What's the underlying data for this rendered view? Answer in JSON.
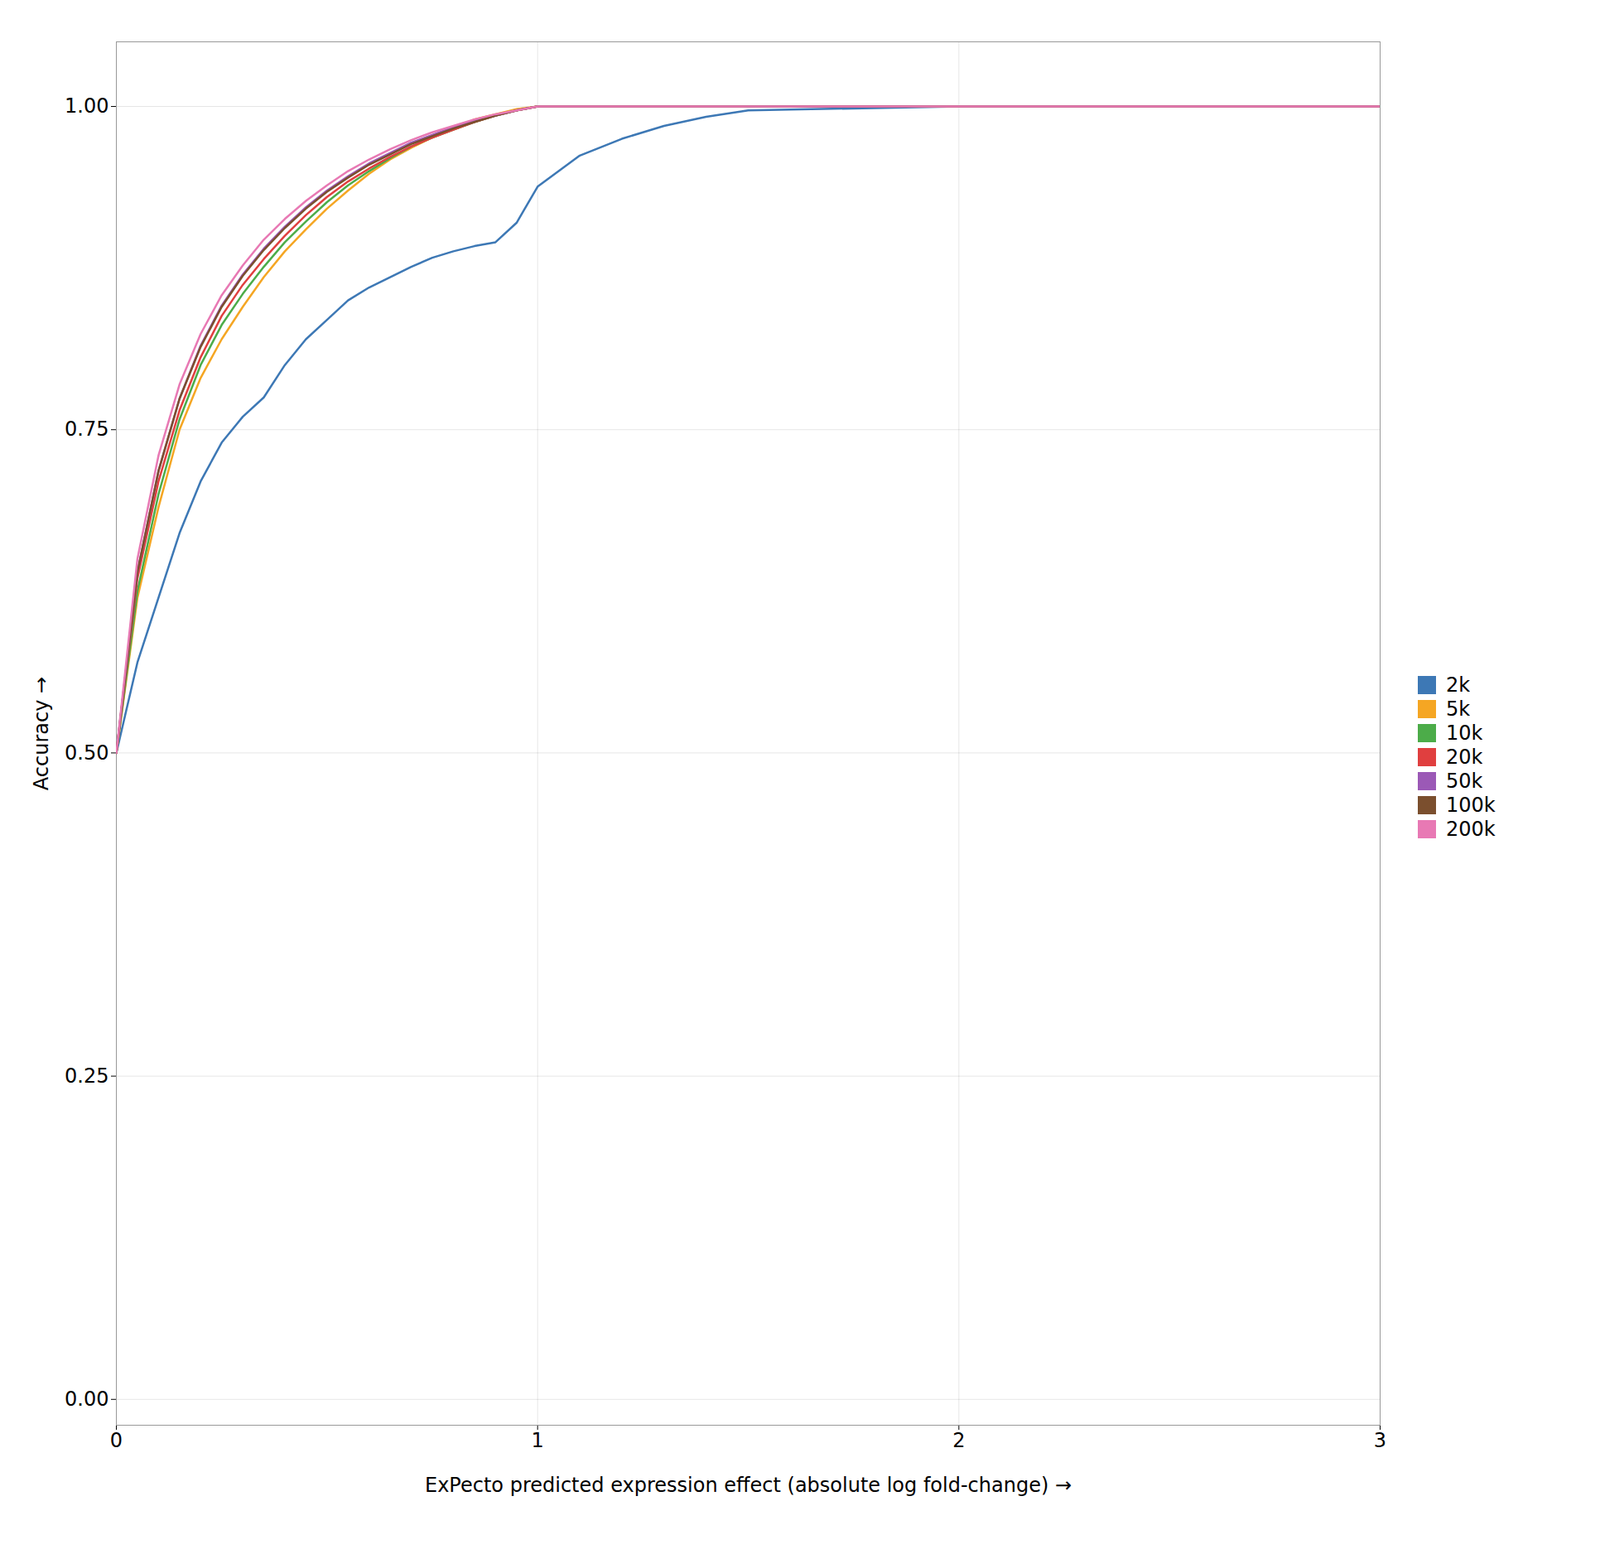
{
  "chart_data": {
    "type": "line",
    "xlabel": "ExPecto predicted expression effect (absolute log fold-change)",
    "ylabel": "Accuracy",
    "xlim": [
      0,
      3
    ],
    "ylim": [
      -0.02,
      1.05
    ],
    "xticks": [
      0,
      1,
      2,
      3
    ],
    "yticks": [
      {
        "value": 0.0,
        "label": "0.00"
      },
      0.25,
      {
        "value": 0.5,
        "label": "0.50"
      },
      0.75,
      {
        "value": 1.0,
        "label": "1.00"
      }
    ],
    "grid": true,
    "legend": "right",
    "series": [
      {
        "name": "2k",
        "color": "#3d78b5",
        "x": [
          0.0,
          0.05,
          0.1,
          0.15,
          0.2,
          0.25,
          0.3,
          0.35,
          0.4,
          0.45,
          0.5,
          0.55,
          0.6,
          0.65,
          0.7,
          0.75,
          0.8,
          0.85,
          0.9,
          0.95,
          1.0,
          1.1,
          1.2,
          1.3,
          1.4,
          1.5,
          2.0,
          3.0
        ],
        "values": [
          0.5,
          0.57,
          0.62,
          0.67,
          0.71,
          0.74,
          0.76,
          0.775,
          0.8,
          0.82,
          0.835,
          0.85,
          0.86,
          0.868,
          0.876,
          0.883,
          0.888,
          0.892,
          0.895,
          0.91,
          0.938,
          0.962,
          0.975,
          0.985,
          0.992,
          0.997,
          1.0,
          1.0
        ]
      },
      {
        "name": "5k",
        "color": "#f5a623",
        "x": [
          0.0,
          0.05,
          0.1,
          0.15,
          0.2,
          0.25,
          0.3,
          0.35,
          0.4,
          0.45,
          0.5,
          0.55,
          0.6,
          0.65,
          0.7,
          0.75,
          0.8,
          0.85,
          0.9,
          0.95,
          1.0,
          1.05,
          1.1,
          1.2,
          2.0,
          3.0
        ],
        "values": [
          0.5,
          0.62,
          0.69,
          0.75,
          0.79,
          0.82,
          0.845,
          0.868,
          0.888,
          0.905,
          0.921,
          0.935,
          0.948,
          0.959,
          0.968,
          0.976,
          0.983,
          0.99,
          0.994,
          0.998,
          1.0,
          1.0,
          1.0,
          1.0,
          1.0,
          1.0
        ]
      },
      {
        "name": "10k",
        "color": "#4cac49",
        "x": [
          0.0,
          0.05,
          0.1,
          0.15,
          0.2,
          0.25,
          0.3,
          0.35,
          0.4,
          0.45,
          0.5,
          0.55,
          0.6,
          0.65,
          0.7,
          0.75,
          0.8,
          0.85,
          0.9,
          0.95,
          1.0,
          1.05,
          1.1,
          1.2,
          2.0,
          3.0
        ],
        "values": [
          0.5,
          0.625,
          0.7,
          0.758,
          0.8,
          0.831,
          0.855,
          0.876,
          0.895,
          0.911,
          0.926,
          0.939,
          0.95,
          0.96,
          0.969,
          0.976,
          0.982,
          0.988,
          0.993,
          0.997,
          1.0,
          1.0,
          1.0,
          1.0,
          1.0,
          1.0
        ]
      },
      {
        "name": "20k",
        "color": "#e03f3f",
        "x": [
          0.0,
          0.05,
          0.1,
          0.15,
          0.2,
          0.25,
          0.3,
          0.35,
          0.4,
          0.45,
          0.5,
          0.55,
          0.6,
          0.65,
          0.7,
          0.75,
          0.8,
          0.85,
          0.9,
          0.95,
          1.0,
          1.05,
          1.1,
          2.0,
          3.0
        ],
        "values": [
          0.5,
          0.635,
          0.71,
          0.765,
          0.806,
          0.838,
          0.862,
          0.882,
          0.9,
          0.916,
          0.93,
          0.942,
          0.952,
          0.961,
          0.969,
          0.976,
          0.982,
          0.988,
          0.993,
          0.997,
          1.0,
          1.0,
          1.0,
          1.0,
          1.0
        ]
      },
      {
        "name": "50k",
        "color": "#9b59b6",
        "x": [
          0.0,
          0.05,
          0.1,
          0.15,
          0.2,
          0.25,
          0.3,
          0.35,
          0.4,
          0.45,
          0.5,
          0.55,
          0.6,
          0.65,
          0.7,
          0.75,
          0.8,
          0.85,
          0.9,
          0.95,
          1.0,
          1.05,
          1.1,
          2.0,
          3.0
        ],
        "values": [
          0.5,
          0.64,
          0.718,
          0.774,
          0.815,
          0.846,
          0.87,
          0.89,
          0.907,
          0.922,
          0.935,
          0.946,
          0.956,
          0.964,
          0.972,
          0.978,
          0.984,
          0.989,
          0.993,
          0.997,
          1.0,
          1.0,
          1.0,
          1.0,
          1.0
        ]
      },
      {
        "name": "100k",
        "color": "#7b4f2e",
        "x": [
          0.0,
          0.05,
          0.1,
          0.15,
          0.2,
          0.25,
          0.3,
          0.35,
          0.4,
          0.45,
          0.5,
          0.55,
          0.6,
          0.65,
          0.7,
          0.75,
          0.8,
          0.85,
          0.9,
          0.95,
          1.0,
          1.05,
          2.0,
          3.0
        ],
        "values": [
          0.5,
          0.64,
          0.718,
          0.774,
          0.814,
          0.845,
          0.869,
          0.889,
          0.906,
          0.921,
          0.934,
          0.945,
          0.955,
          0.963,
          0.971,
          0.977,
          0.983,
          0.988,
          0.993,
          0.997,
          1.0,
          1.0,
          1.0,
          1.0
        ]
      },
      {
        "name": "200k",
        "color": "#e879b4",
        "x": [
          0.0,
          0.05,
          0.1,
          0.15,
          0.2,
          0.25,
          0.3,
          0.35,
          0.4,
          0.45,
          0.5,
          0.55,
          0.6,
          0.65,
          0.7,
          0.75,
          0.8,
          0.85,
          0.9,
          0.95,
          1.0,
          1.05,
          1.1,
          2.0,
          3.0
        ],
        "values": [
          0.5,
          0.65,
          0.73,
          0.785,
          0.824,
          0.854,
          0.877,
          0.897,
          0.913,
          0.927,
          0.939,
          0.95,
          0.959,
          0.967,
          0.974,
          0.98,
          0.985,
          0.99,
          0.994,
          0.997,
          1.0,
          1.0,
          1.0,
          1.0,
          1.0
        ]
      }
    ]
  }
}
